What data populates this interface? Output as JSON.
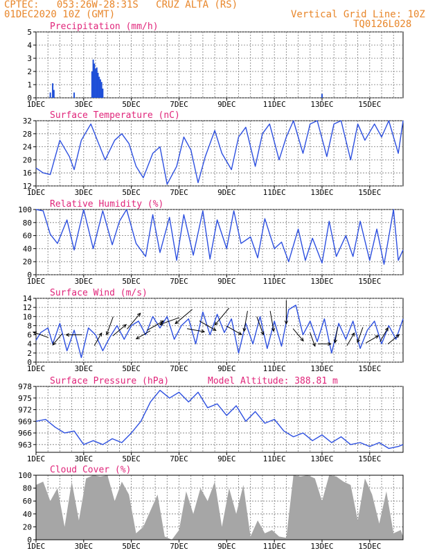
{
  "header": {
    "line1": "CPTEC:   053:26W-28:31S   CRUZ ALTA (RS)",
    "line2": "01DEC2020 10Z (GMT)",
    "right1": "Vertical Grid Line: 10Z",
    "right2": "TQ0126L028"
  },
  "x_tick_labels": [
    "1DEC",
    "3DEC",
    "5DEC",
    "7DEC",
    "9DEC",
    "11DEC",
    "13DEC",
    "15DEC"
  ],
  "chart_data": [
    {
      "type": "bar",
      "title": "Precipitation (mm/h)",
      "ylim": [
        0,
        5
      ],
      "yticks": [
        0,
        1,
        2,
        3,
        4,
        5
      ],
      "grid": true,
      "x": [
        0.6,
        0.7,
        0.75,
        1.6,
        2.35,
        2.4,
        2.45,
        2.5,
        2.55,
        2.6,
        2.65,
        2.7,
        2.75,
        2.8,
        12.0
      ],
      "values": [
        0.4,
        1.1,
        0.6,
        0.4,
        2.0,
        2.9,
        2.6,
        2.2,
        2.3,
        1.9,
        1.6,
        1.4,
        1.2,
        0.7,
        0.3
      ]
    },
    {
      "type": "line",
      "title": "Surface Temperature (nC)",
      "ylim": [
        12,
        32
      ],
      "yticks": [
        12,
        16,
        20,
        24,
        28,
        32
      ],
      "grid": true,
      "x": [
        0,
        0.3,
        0.6,
        1.0,
        1.4,
        1.6,
        1.9,
        2.3,
        2.6,
        2.9,
        3.3,
        3.6,
        3.9,
        4.2,
        4.5,
        4.9,
        5.2,
        5.5,
        5.9,
        6.2,
        6.5,
        6.8,
        7.1,
        7.5,
        7.8,
        8.2,
        8.5,
        8.8,
        9.2,
        9.5,
        9.8,
        10.2,
        10.5,
        10.8,
        11.2,
        11.5,
        11.8,
        12.2,
        12.5,
        12.8,
        13.2,
        13.5,
        13.8,
        14.2,
        14.5,
        14.8,
        15.2,
        15.4
      ],
      "series": [
        {
          "values": [
            17.5,
            16,
            15.5,
            26,
            21,
            17,
            26,
            31,
            25.5,
            20,
            26,
            28,
            25,
            18,
            14.5,
            22,
            24,
            12.5,
            18,
            27,
            23,
            13,
            21,
            29,
            22,
            17,
            27,
            30,
            18,
            28,
            31,
            20,
            27,
            32,
            22,
            31,
            32,
            21,
            31,
            32,
            20,
            31,
            26,
            31,
            27,
            32,
            22,
            32
          ]
        }
      ]
    },
    {
      "type": "line",
      "title": "Relative Humidity (%)",
      "ylim": [
        0,
        100
      ],
      "yticks": [
        0,
        20,
        40,
        60,
        80,
        100
      ],
      "grid": true,
      "x": [
        0,
        0.3,
        0.6,
        0.9,
        1.3,
        1.6,
        2.0,
        2.4,
        2.8,
        3.2,
        3.5,
        3.8,
        4.2,
        4.6,
        4.9,
        5.2,
        5.6,
        5.9,
        6.2,
        6.6,
        7.0,
        7.3,
        7.6,
        8.0,
        8.3,
        8.6,
        9.0,
        9.3,
        9.6,
        10.0,
        10.3,
        10.6,
        11.0,
        11.3,
        11.6,
        12.0,
        12.3,
        12.6,
        13.0,
        13.3,
        13.6,
        14.0,
        14.3,
        14.6,
        15.0,
        15.2,
        15.4
      ],
      "series": [
        {
          "values": [
            100,
            98,
            62,
            48,
            84,
            38,
            100,
            40,
            98,
            46,
            82,
            100,
            48,
            28,
            92,
            34,
            88,
            22,
            92,
            30,
            98,
            24,
            84,
            40,
            98,
            48,
            58,
            26,
            86,
            40,
            50,
            20,
            70,
            22,
            56,
            18,
            82,
            28,
            60,
            28,
            82,
            22,
            70,
            16,
            100,
            22,
            38
          ]
        }
      ]
    },
    {
      "type": "line",
      "title": "Surface Wind (m/s)",
      "ylim": [
        0,
        14
      ],
      "yticks": [
        0,
        2,
        4,
        6,
        8,
        10,
        12,
        14
      ],
      "grid": true,
      "x": [
        0,
        0.2,
        0.5,
        0.7,
        1.0,
        1.3,
        1.6,
        1.9,
        2.2,
        2.5,
        2.8,
        3.1,
        3.4,
        3.7,
        4.0,
        4.3,
        4.6,
        4.9,
        5.2,
        5.5,
        5.8,
        6.1,
        6.4,
        6.7,
        7.0,
        7.3,
        7.6,
        7.9,
        8.2,
        8.5,
        8.8,
        9.1,
        9.4,
        9.7,
        10.0,
        10.3,
        10.6,
        10.9,
        11.2,
        11.5,
        11.8,
        12.1,
        12.4,
        12.7,
        13.0,
        13.3,
        13.6,
        13.9,
        14.2,
        14.5,
        14.8,
        15.1,
        15.4
      ],
      "series": [
        {
          "values": [
            4.8,
            6.5,
            7.5,
            4,
            8.5,
            2.5,
            7,
            1,
            7.5,
            6,
            2.5,
            5.5,
            8,
            5,
            8,
            9,
            6,
            10,
            7.5,
            10,
            5,
            8,
            9.5,
            4,
            11,
            6,
            10.5,
            6.5,
            9.5,
            2,
            8.5,
            4,
            10,
            3,
            9,
            3.5,
            11.5,
            12.5,
            6,
            9,
            4.5,
            9.5,
            2,
            8.5,
            5,
            9,
            3,
            7,
            9,
            4,
            8,
            5,
            9.5
          ]
        }
      ],
      "arrows": [
        {
          "x": 0.2,
          "speed": 6,
          "dir_from": 110
        },
        {
          "x": 0.9,
          "speed": 5,
          "dir_from": 40
        },
        {
          "x": 1.6,
          "speed": 6,
          "dir_from": 90
        },
        {
          "x": 2.6,
          "speed": 5,
          "dir_from": 210
        },
        {
          "x": 3.1,
          "speed": 8,
          "dir_from": 20
        },
        {
          "x": 3.5,
          "speed": 7,
          "dir_from": 230
        },
        {
          "x": 4.1,
          "speed": 9,
          "dir_from": 220
        },
        {
          "x": 4.5,
          "speed": 6,
          "dir_from": 60
        },
        {
          "x": 5.0,
          "speed": 8,
          "dir_from": 240
        },
        {
          "x": 5.6,
          "speed": 9,
          "dir_from": 70
        },
        {
          "x": 6.2,
          "speed": 10,
          "dir_from": 50
        },
        {
          "x": 6.7,
          "speed": 7,
          "dir_from": 280
        },
        {
          "x": 7.2,
          "speed": 8,
          "dir_from": 300
        },
        {
          "x": 7.8,
          "speed": 10,
          "dir_from": 40
        },
        {
          "x": 8.3,
          "speed": 7,
          "dir_from": 300
        },
        {
          "x": 8.8,
          "speed": 9,
          "dir_from": 10
        },
        {
          "x": 9.4,
          "speed": 8,
          "dir_from": 340
        },
        {
          "x": 9.9,
          "speed": 9,
          "dir_from": 350
        },
        {
          "x": 10.5,
          "speed": 11,
          "dir_from": 0
        },
        {
          "x": 11.0,
          "speed": 6,
          "dir_from": 320
        },
        {
          "x": 11.6,
          "speed": 5,
          "dir_from": 340
        },
        {
          "x": 12.1,
          "speed": 4,
          "dir_from": 270
        },
        {
          "x": 12.6,
          "speed": 6,
          "dir_from": 10
        },
        {
          "x": 13.2,
          "speed": 5,
          "dir_from": 210
        },
        {
          "x": 13.6,
          "speed": 6,
          "dir_from": 20
        },
        {
          "x": 14.1,
          "speed": 5,
          "dir_from": 240
        },
        {
          "x": 14.6,
          "speed": 6,
          "dir_from": 210
        },
        {
          "x": 15.0,
          "speed": 5,
          "dir_from": 230
        }
      ]
    },
    {
      "type": "line",
      "title": "Surface Pressure (hPa)",
      "annotation": "Model Altitude: 388.81 m",
      "ylim": [
        961,
        978
      ],
      "yticks": [
        963,
        966,
        969,
        972,
        975,
        978
      ],
      "grid": true,
      "x": [
        0,
        0.4,
        0.8,
        1.2,
        1.6,
        2.0,
        2.4,
        2.8,
        3.2,
        3.6,
        4.0,
        4.4,
        4.8,
        5.2,
        5.6,
        6.0,
        6.4,
        6.8,
        7.2,
        7.6,
        8.0,
        8.4,
        8.8,
        9.2,
        9.6,
        10.0,
        10.4,
        10.8,
        11.2,
        11.6,
        12.0,
        12.4,
        12.8,
        13.2,
        13.6,
        14.0,
        14.4,
        14.8,
        15.2,
        15.4
      ],
      "series": [
        {
          "values": [
            969,
            969.5,
            967.5,
            966,
            966.5,
            963,
            964,
            963,
            964.5,
            963.5,
            966,
            969,
            974,
            977,
            975,
            976.5,
            974,
            976.5,
            972.5,
            973.5,
            970.5,
            973,
            969,
            971.5,
            968.5,
            969.5,
            966.5,
            965,
            966,
            964,
            965.5,
            963.5,
            965,
            963,
            963.5,
            962.5,
            963.5,
            962,
            962.5,
            963
          ]
        }
      ]
    },
    {
      "type": "area",
      "title": "Cloud Cover (%)",
      "ylim": [
        0,
        100
      ],
      "yticks": [
        0,
        20,
        40,
        60,
        80,
        100
      ],
      "grid": true,
      "x": [
        0,
        0.3,
        0.6,
        0.9,
        1.2,
        1.5,
        1.8,
        2.1,
        2.4,
        2.7,
        3.0,
        3.3,
        3.6,
        3.9,
        4.2,
        4.5,
        4.8,
        5.1,
        5.4,
        5.7,
        6.0,
        6.3,
        6.6,
        6.9,
        7.2,
        7.5,
        7.8,
        8.1,
        8.4,
        8.7,
        9.0,
        9.3,
        9.6,
        9.9,
        10.2,
        10.5,
        10.8,
        11.1,
        11.4,
        11.7,
        12.0,
        12.3,
        12.6,
        12.9,
        13.2,
        13.5,
        13.8,
        14.1,
        14.4,
        14.7,
        15.0,
        15.3,
        15.4
      ],
      "series": [
        {
          "values": [
            85,
            90,
            60,
            80,
            20,
            90,
            30,
            95,
            100,
            98,
            100,
            60,
            90,
            70,
            10,
            20,
            45,
            70,
            5,
            0,
            15,
            75,
            40,
            80,
            60,
            90,
            20,
            80,
            40,
            85,
            5,
            30,
            10,
            15,
            5,
            3,
            100,
            98,
            100,
            95,
            60,
            100,
            98,
            90,
            85,
            30,
            95,
            70,
            25,
            75,
            10,
            15,
            5
          ]
        }
      ]
    }
  ]
}
